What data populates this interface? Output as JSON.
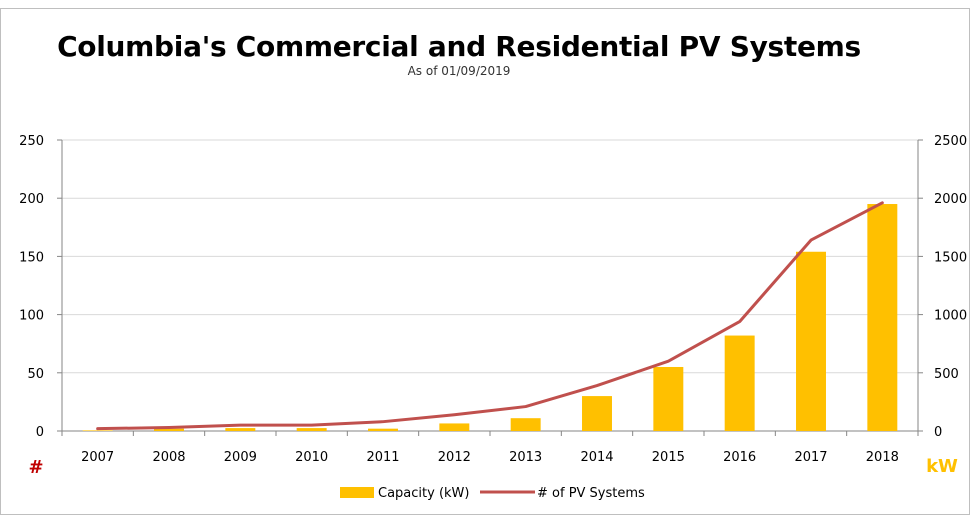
{
  "chart_data": {
    "type": "bar",
    "title": "Columbia's Commercial and Residential PV Systems",
    "subtitle": "As of 01/09/2019",
    "categories": [
      "2007",
      "2008",
      "2009",
      "2010",
      "2011",
      "2012",
      "2013",
      "2014",
      "2015",
      "2016",
      "2017",
      "2018"
    ],
    "series": [
      {
        "name": "Capacity (kW)",
        "type": "bar",
        "axis": "right",
        "color": "#FFC000",
        "values": [
          5,
          20,
          25,
          25,
          20,
          65,
          110,
          300,
          550,
          820,
          1540,
          1950
        ]
      },
      {
        "name": "# of PV Systems",
        "type": "line",
        "axis": "left",
        "color": "#C0504D",
        "values": [
          2,
          3,
          5,
          5,
          8,
          14,
          21,
          39,
          60,
          94,
          164,
          196
        ]
      }
    ],
    "yleft": {
      "label": "#",
      "label_color": "#C00000",
      "range": [
        0,
        250
      ],
      "ticks": [
        "0",
        "50",
        "100",
        "150",
        "200",
        "250"
      ]
    },
    "yright": {
      "label": "kW",
      "label_color": "#FFC000",
      "range": [
        0,
        2500
      ],
      "ticks": [
        "0",
        "500",
        "1000",
        "1500",
        "2000",
        "2500"
      ]
    },
    "grid": true,
    "legend_position": "bottom"
  }
}
